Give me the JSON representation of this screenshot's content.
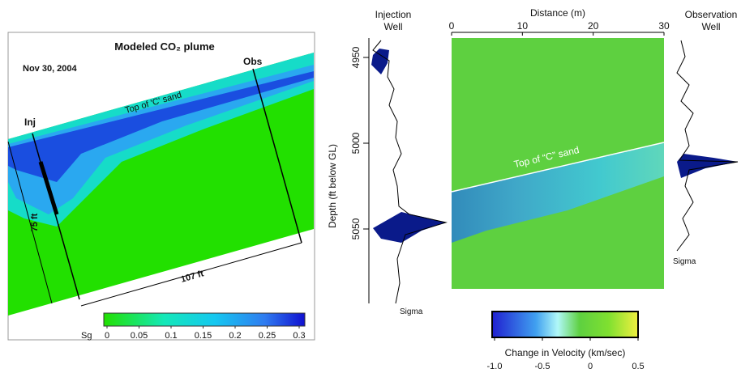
{
  "left_panel": {
    "title": "Modeled CO₂ plume",
    "date": "Nov 30, 2004",
    "obs_label": "Obs",
    "inj_label": "Inj",
    "top_sand_label": "Top of 'C' sand",
    "thickness_label": "75 ft",
    "length_label": "107 ft",
    "colorbar": {
      "label": "Sg",
      "ticks": [
        0,
        0.05,
        0.1,
        0.15,
        0.2,
        0.25,
        0.3
      ]
    }
  },
  "right_panel": {
    "injection_well_title": [
      "Injection",
      "Well"
    ],
    "observation_well_title": [
      "Observation",
      "Well"
    ],
    "x_axis_label": "Distance (m)",
    "xticks": [
      0,
      10,
      20,
      30
    ],
    "y_axis_label": "Depth (ft below GL)",
    "yticks": [
      4950,
      5000,
      5050
    ],
    "top_sand_label": "Top of “C” sand",
    "injection_sigma_label": "Sigma",
    "observation_sigma_label": "Sigma",
    "colorbar": {
      "label": "Change in Velocity (km/sec)",
      "ticks": [
        {
          "value": -1,
          "label": "-1.0"
        },
        -0.5,
        0,
        0.5
      ]
    }
  }
}
